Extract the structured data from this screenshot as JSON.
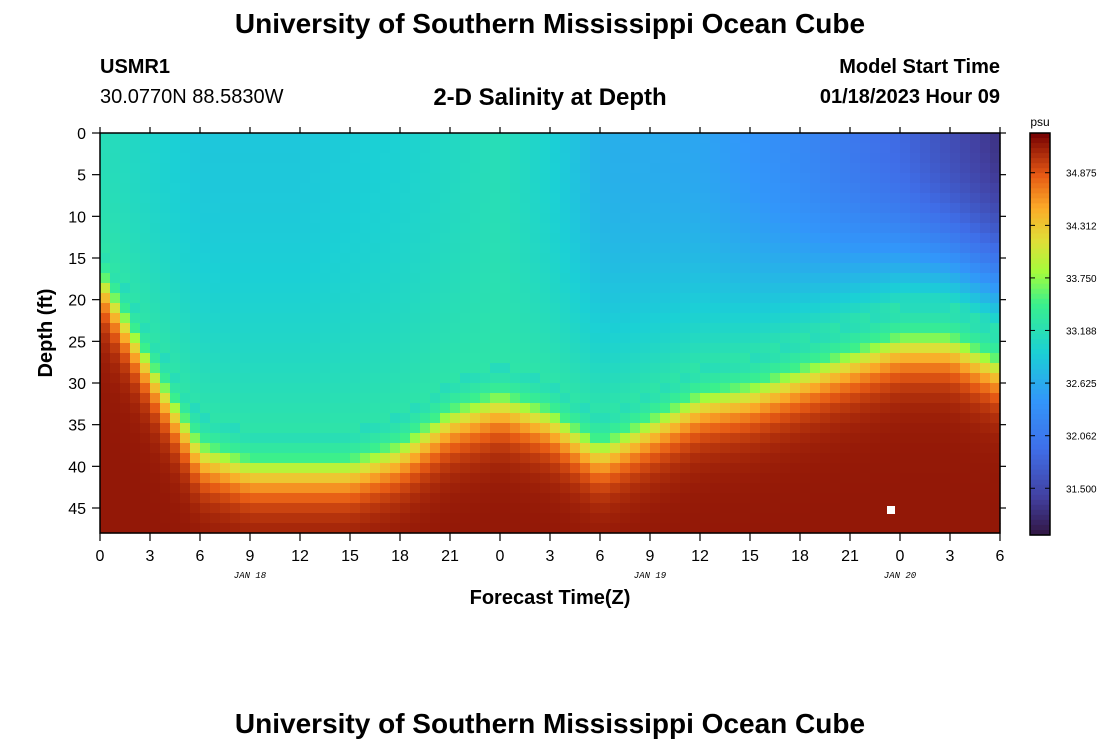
{
  "header": {
    "title": "University of Southern Mississippi Ocean Cube",
    "station": "USMR1",
    "coords": "30.0770N  88.5830W",
    "plot_title": "2-D Salinity at Depth",
    "model_start_label": "Model Start Time",
    "model_start_value": "01/18/2023 Hour 09"
  },
  "footer": {
    "title": "University of Southern Mississippi Ocean Cube"
  },
  "chart_data": {
    "type": "heatmap",
    "title": "2-D Salinity at Depth",
    "xlabel": "Forecast Time(Z)",
    "ylabel": "Depth (ft)",
    "x_tick_labels": [
      "0",
      "3",
      "6",
      "9",
      "12",
      "15",
      "18",
      "21",
      "0",
      "3",
      "6",
      "9",
      "12",
      "15",
      "18",
      "21",
      "0",
      "3",
      "6"
    ],
    "x_date_labels": [
      {
        "label": "JAN 18",
        "at_tick": 4
      },
      {
        "label": "JAN 19",
        "at_tick": 12
      },
      {
        "label": "JAN 20",
        "at_tick": 17
      }
    ],
    "xlim_hours": [
      0,
      54
    ],
    "y_ticks": [
      0,
      5,
      10,
      15,
      20,
      25,
      30,
      35,
      40,
      45
    ],
    "ylim": [
      0,
      48
    ],
    "colorbar": {
      "unit": "psu",
      "range": [
        31.0,
        35.3
      ],
      "ticks": [
        "34.875",
        "34.312",
        "33.750",
        "33.188",
        "32.625",
        "32.062",
        "31.500"
      ]
    },
    "depth_profile": {
      "description": "Approximate depth (ft) of the 33.5 psu halocline vs forecast hour",
      "hours": [
        0,
        3,
        6,
        9,
        12,
        15,
        18,
        21,
        24,
        27,
        30,
        33,
        36,
        39,
        42,
        45,
        48,
        51,
        54
      ],
      "depth": [
        16,
        27,
        37,
        39,
        39,
        39,
        37,
        33,
        31,
        33,
        37,
        34,
        31,
        30,
        28,
        26,
        24,
        24,
        27
      ]
    },
    "surface_salinity": {
      "hours": [
        0,
        6,
        12,
        18,
        24,
        27,
        30,
        36,
        42,
        48,
        54
      ],
      "value": [
        33.2,
        32.9,
        32.9,
        33.0,
        33.2,
        33.0,
        32.7,
        32.6,
        32.3,
        31.9,
        31.3
      ]
    },
    "bottom_salinity_max": 35.2
  }
}
